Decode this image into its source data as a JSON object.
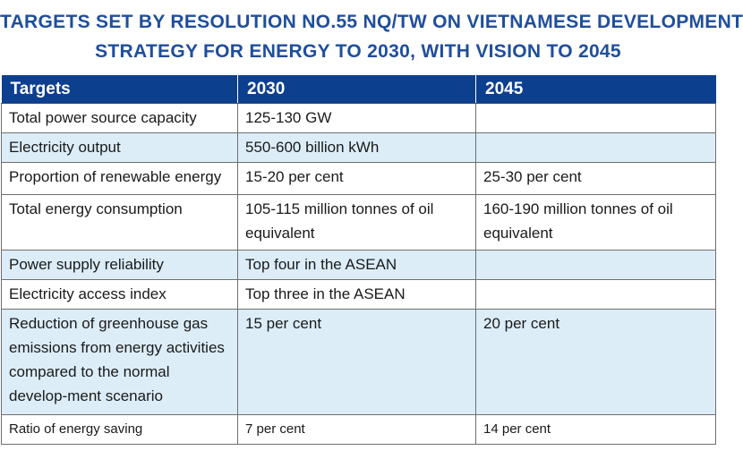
{
  "title": {
    "line1": "TARGETS SET BY RESOLUTION NO.55 NQ/TW ON VIETNAMESE DEVELOPMENT",
    "line2": "STRATEGY FOR ENERGY TO 2030, WITH VISION TO 2045"
  },
  "table": {
    "headers": [
      "Targets",
      "2030",
      "2045"
    ],
    "rows": [
      {
        "target": "Total power source capacity",
        "y2030": "125-130 GW",
        "y2045": ""
      },
      {
        "target": "Electricity output",
        "y2030": "550-600 billion kWh",
        "y2045": ""
      },
      {
        "target": "Proportion of renewable energy",
        "y2030": "15-20 per cent",
        "y2045": "25-30 per cent"
      },
      {
        "target": "Total energy consumption",
        "y2030": "105-115 million tonnes of oil equivalent",
        "y2045": "160-190 million tonnes of oil equivalent"
      },
      {
        "target": "Power supply reliability",
        "y2030": "Top four in the ASEAN",
        "y2045": ""
      },
      {
        "target": "Electricity access index",
        "y2030": "Top three in the ASEAN",
        "y2045": ""
      },
      {
        "target": "Reduction of greenhouse gas emissions from energy activities compared to the normal develop-ment scenario",
        "y2030": "15 per cent",
        "y2045": "20 per cent"
      },
      {
        "target": "Ratio of energy saving",
        "y2030": "7 per cent",
        "y2045": "14 per cent"
      }
    ]
  },
  "colors": {
    "title": "#1f4e9c",
    "header_bg": "#0d3f8f",
    "alt_row_bg": "#dcedf8"
  }
}
